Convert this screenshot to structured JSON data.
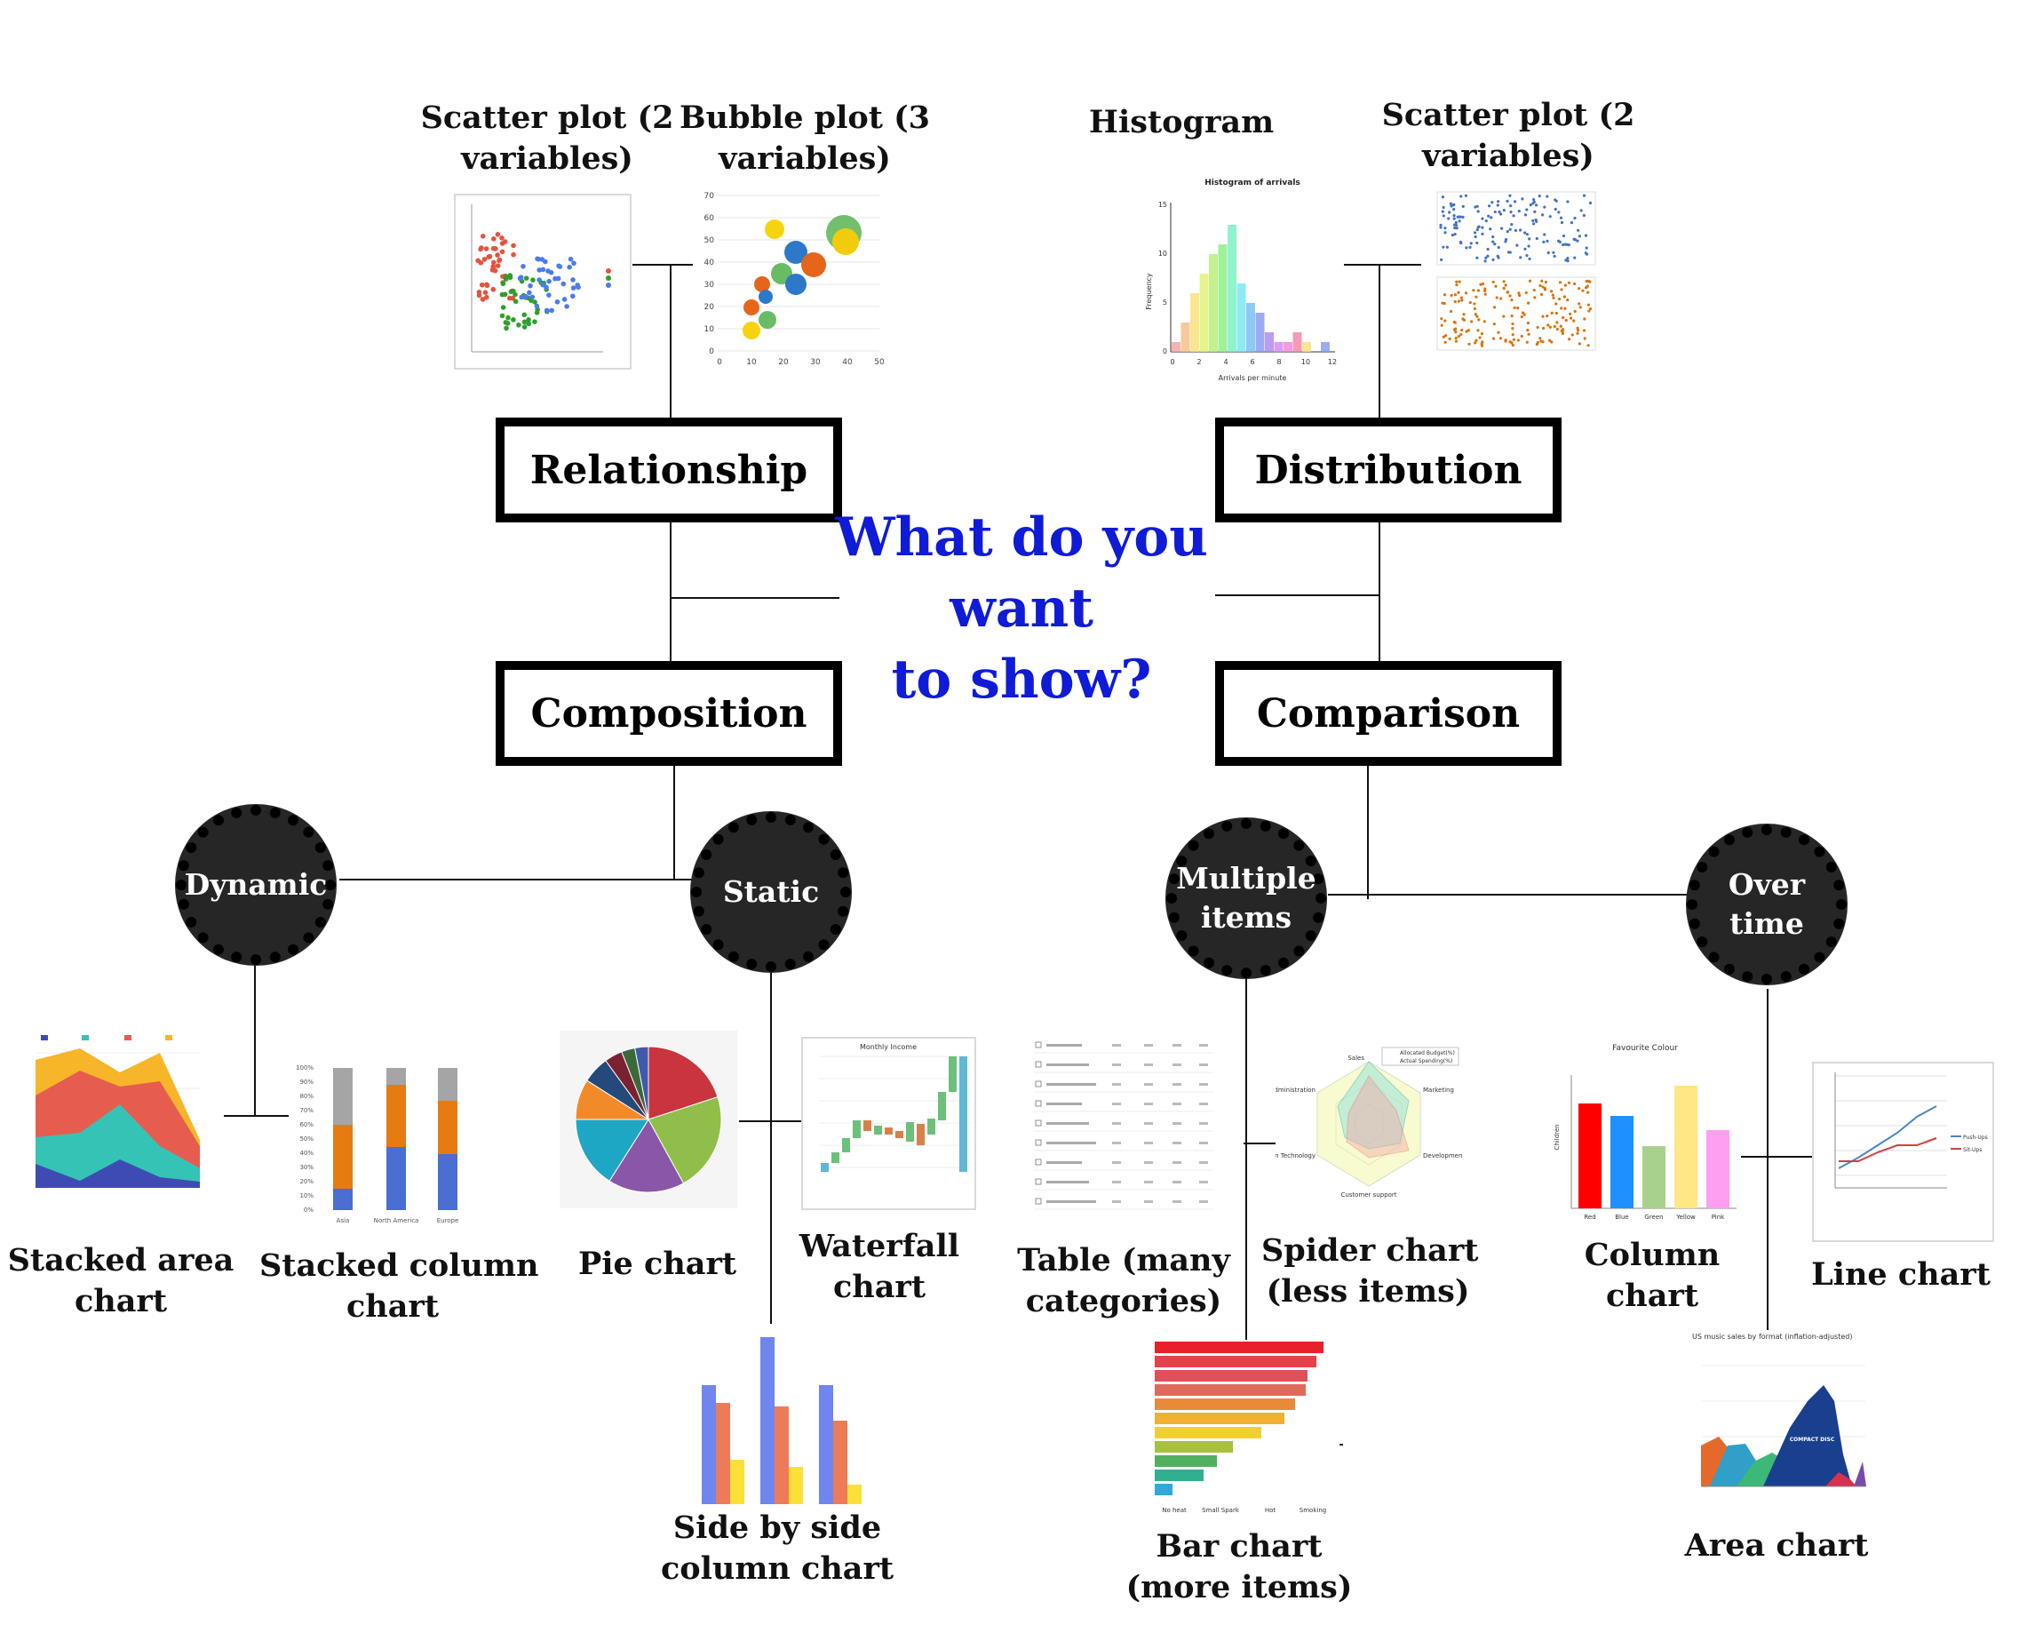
{
  "center_question": [
    "What do you",
    "want",
    "to show?"
  ],
  "categories": {
    "relationship": "Relationship",
    "distribution": "Distribution",
    "composition": "Composition",
    "comparison": "Comparison"
  },
  "nodes": {
    "dynamic": [
      "Dynamic"
    ],
    "static": [
      "Static"
    ],
    "multiple_items": [
      "Multiple",
      "items"
    ],
    "over_time": [
      "Over",
      "time"
    ]
  },
  "charts": {
    "scatter_rel": [
      "Scatter plot (2",
      "variables)"
    ],
    "bubble": [
      "Bubble plot (3",
      "variables)"
    ],
    "histogram": [
      "Histogram"
    ],
    "scatter_dist": [
      "Scatter plot (2",
      "variables)"
    ],
    "stacked_area": [
      "Stacked area",
      "chart"
    ],
    "stacked_column": [
      "Stacked column",
      "chart"
    ],
    "pie": [
      "Pie chart"
    ],
    "waterfall": [
      "Waterfall",
      "chart"
    ],
    "side_by_side": [
      "Side by side",
      "column chart"
    ],
    "table": [
      "Table (many",
      "categories)"
    ],
    "spider": [
      "Spider chart",
      "(less items)"
    ],
    "bar": [
      "Bar chart",
      "(more items)"
    ],
    "column": [
      "Column",
      "chart"
    ],
    "line": [
      "Line chart"
    ],
    "area": [
      "Area chart"
    ]
  },
  "thumb_text": {
    "histogram_title": "Histogram of arrivals",
    "histogram_xlabel": "Arrivals per minute",
    "histogram_ylabel": "Frequency",
    "waterfall_title": "Monthly Income",
    "column_title": "Favourite Colour",
    "column_ylabel": "Children",
    "column_categories": [
      "Red",
      "Blue",
      "Green",
      "Yellow",
      "Pink"
    ],
    "stacked_column_categories": [
      "Asia",
      "North America",
      "Europe"
    ],
    "spider_axes": [
      "Sales",
      "Marketing",
      "Development",
      "Customer support",
      "Information Technology",
      "Administration"
    ],
    "spider_legend": [
      "Allocated Budget(%)",
      "Actual Spending(%)"
    ],
    "line_legend": [
      "Push-Ups",
      "Sit-Ups"
    ],
    "bar_categories": [
      "No heat",
      "Small Spark",
      "Hot",
      "Smoking"
    ],
    "area_title": "US music sales by format (inflation-adjusted)",
    "area_label": "COMPACT DISC"
  },
  "colors": {
    "question": "#0f1bd6",
    "node_fill": "#262626",
    "box_border": "#000000"
  }
}
